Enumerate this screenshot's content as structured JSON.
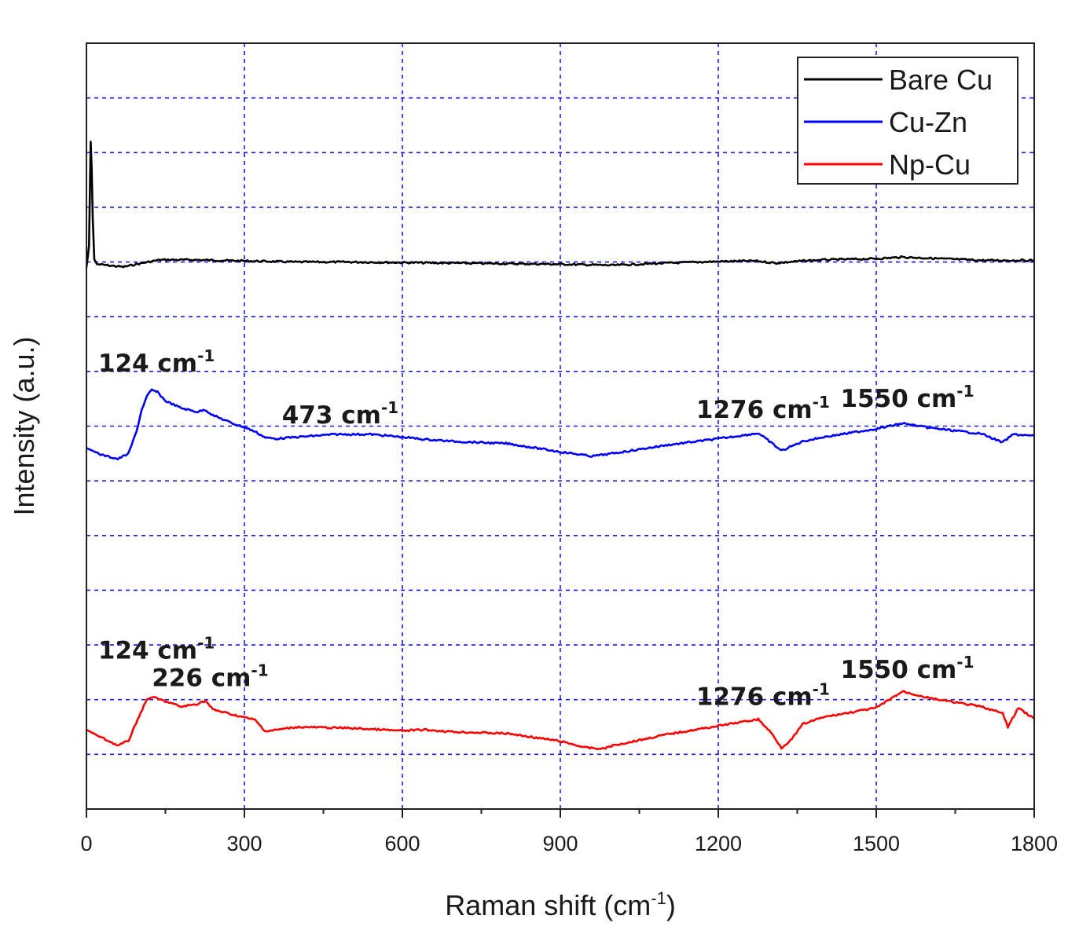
{
  "chart_data": {
    "type": "line",
    "xlabel": "Raman shift (cm",
    "xlabel_sup": "-1",
    "xlabel_close": ")",
    "ylabel": "Intensity (a.u.)",
    "xlim": [
      0,
      1800
    ],
    "ylim": [
      0,
      14
    ],
    "x_ticks": [
      0,
      300,
      600,
      900,
      1200,
      1500,
      1800
    ],
    "x_tick_labels": [
      "0",
      "300",
      "600",
      "900",
      "1200",
      "1500",
      "1800"
    ],
    "grid": true,
    "legend_position": "top-right",
    "colors": {
      "grid": "#1a1ae6",
      "axis": "#222222"
    },
    "series": [
      {
        "name": "Bare Cu",
        "color": "#000000",
        "points": [
          [
            0,
            9.9
          ],
          [
            5,
            10.3
          ],
          [
            8,
            12.2
          ],
          [
            10,
            11.7
          ],
          [
            12,
            10.8
          ],
          [
            15,
            10.05
          ],
          [
            20,
            9.96
          ],
          [
            40,
            9.94
          ],
          [
            70,
            9.91
          ],
          [
            100,
            9.97
          ],
          [
            140,
            10.04
          ],
          [
            200,
            10.04
          ],
          [
            300,
            10.02
          ],
          [
            400,
            10
          ],
          [
            500,
            10
          ],
          [
            600,
            9.99
          ],
          [
            700,
            9.98
          ],
          [
            800,
            9.97
          ],
          [
            900,
            9.96
          ],
          [
            950,
            9.95
          ],
          [
            1000,
            9.94
          ],
          [
            1100,
            9.98
          ],
          [
            1200,
            10.01
          ],
          [
            1270,
            10.02
          ],
          [
            1310,
            9.98
          ],
          [
            1360,
            10.02
          ],
          [
            1400,
            10.04
          ],
          [
            1500,
            10.06
          ],
          [
            1550,
            10.09
          ],
          [
            1600,
            10.07
          ],
          [
            1700,
            10.03
          ],
          [
            1800,
            10.03
          ]
        ]
      },
      {
        "name": "Cu-Zn",
        "color": "#0000ff",
        "points": [
          [
            0,
            6.6
          ],
          [
            30,
            6.47
          ],
          [
            60,
            6.4
          ],
          [
            80,
            6.5
          ],
          [
            95,
            6.9
          ],
          [
            105,
            7.3
          ],
          [
            115,
            7.55
          ],
          [
            124,
            7.66
          ],
          [
            135,
            7.62
          ],
          [
            150,
            7.46
          ],
          [
            180,
            7.33
          ],
          [
            210,
            7.26
          ],
          [
            225,
            7.3
          ],
          [
            240,
            7.2
          ],
          [
            280,
            7.04
          ],
          [
            300,
            6.98
          ],
          [
            320,
            6.9
          ],
          [
            340,
            6.79
          ],
          [
            360,
            6.77
          ],
          [
            400,
            6.8
          ],
          [
            473,
            6.85
          ],
          [
            540,
            6.85
          ],
          [
            600,
            6.8
          ],
          [
            640,
            6.76
          ],
          [
            700,
            6.72
          ],
          [
            800,
            6.68
          ],
          [
            900,
            6.53
          ],
          [
            960,
            6.45
          ],
          [
            1000,
            6.5
          ],
          [
            1100,
            6.65
          ],
          [
            1200,
            6.77
          ],
          [
            1276,
            6.87
          ],
          [
            1300,
            6.7
          ],
          [
            1320,
            6.55
          ],
          [
            1360,
            6.72
          ],
          [
            1400,
            6.8
          ],
          [
            1500,
            6.95
          ],
          [
            1550,
            7.05
          ],
          [
            1600,
            6.97
          ],
          [
            1700,
            6.86
          ],
          [
            1740,
            6.7
          ],
          [
            1760,
            6.85
          ],
          [
            1800,
            6.82
          ]
        ]
      },
      {
        "name": "Np-Cu",
        "color": "#ff0000",
        "points": [
          [
            0,
            1.45
          ],
          [
            30,
            1.3
          ],
          [
            60,
            1.16
          ],
          [
            80,
            1.25
          ],
          [
            100,
            1.7
          ],
          [
            115,
            2.0
          ],
          [
            124,
            2.05
          ],
          [
            150,
            1.97
          ],
          [
            180,
            1.87
          ],
          [
            210,
            1.92
          ],
          [
            226,
            1.98
          ],
          [
            240,
            1.82
          ],
          [
            280,
            1.72
          ],
          [
            320,
            1.63
          ],
          [
            340,
            1.42
          ],
          [
            400,
            1.5
          ],
          [
            500,
            1.48
          ],
          [
            600,
            1.43
          ],
          [
            640,
            1.45
          ],
          [
            700,
            1.41
          ],
          [
            800,
            1.38
          ],
          [
            900,
            1.24
          ],
          [
            950,
            1.12
          ],
          [
            980,
            1.1
          ],
          [
            1000,
            1.16
          ],
          [
            1100,
            1.36
          ],
          [
            1200,
            1.52
          ],
          [
            1250,
            1.6
          ],
          [
            1276,
            1.64
          ],
          [
            1300,
            1.4
          ],
          [
            1320,
            1.12
          ],
          [
            1340,
            1.28
          ],
          [
            1360,
            1.55
          ],
          [
            1400,
            1.68
          ],
          [
            1500,
            1.85
          ],
          [
            1550,
            2.15
          ],
          [
            1600,
            2.03
          ],
          [
            1700,
            1.87
          ],
          [
            1740,
            1.75
          ],
          [
            1750,
            1.5
          ],
          [
            1770,
            1.85
          ],
          [
            1800,
            1.65
          ]
        ]
      }
    ],
    "annotations": [
      {
        "text": "124 cm",
        "sup": "-1",
        "x": 124,
        "y": 8.0
      },
      {
        "text": "473 cm",
        "sup": "-1",
        "x": 473,
        "y": 7.05
      },
      {
        "text": "1276 cm",
        "sup": "-1",
        "x": 1276,
        "y": 7.15
      },
      {
        "text": "1550 cm",
        "sup": "-1",
        "x": 1550,
        "y": 7.35
      },
      {
        "text": "124 cm",
        "sup": "-1",
        "x": 124,
        "y": 2.75
      },
      {
        "text": "226 cm",
        "sup": "-1",
        "x": 226,
        "y": 2.25
      },
      {
        "text": "1276 cm",
        "sup": "-1",
        "x": 1276,
        "y": 1.9
      },
      {
        "text": "1550 cm",
        "sup": "-1",
        "x": 1550,
        "y": 2.4
      }
    ]
  }
}
